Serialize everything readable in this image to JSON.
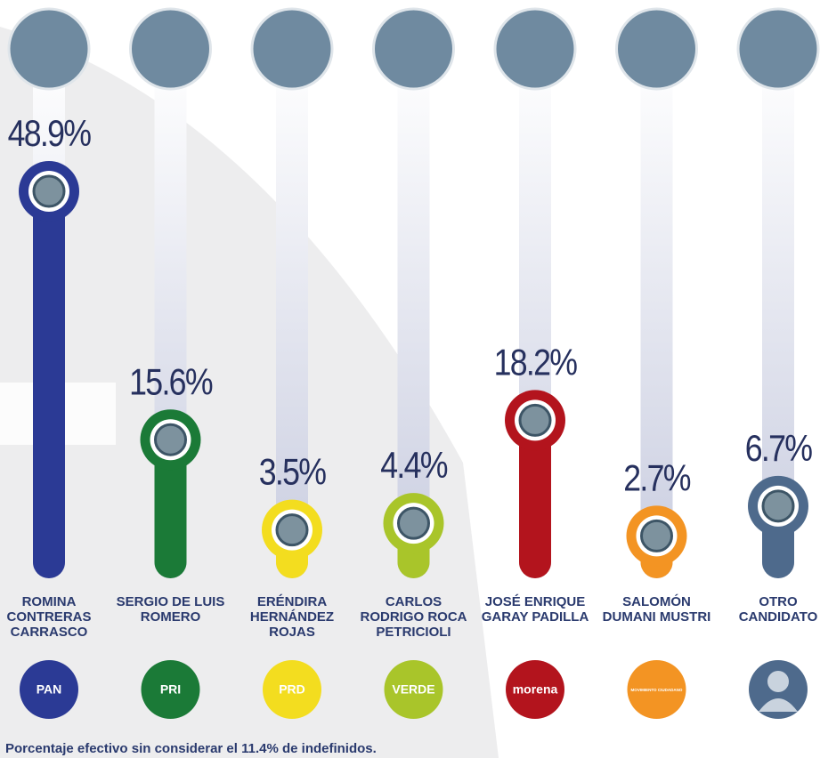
{
  "chart_data": {
    "type": "bar",
    "categories": [
      "ROMINA CONTRERAS CARRASCO",
      "SERGIO DE LUIS ROMERO",
      "ERÉNDIRA HERNÁNDEZ ROJAS",
      "CARLOS RODRIGO ROCA PETRICIOLI",
      "JOSÉ ENRIQUE GARAY PADILLA",
      "SALOMÓN DUMANI MUSTRI",
      "OTRO CANDIDATO"
    ],
    "values": [
      48.9,
      15.6,
      3.5,
      4.4,
      18.2,
      2.7,
      6.7
    ],
    "value_labels": [
      "48.9%",
      "15.6%",
      "3.5%",
      "4.4%",
      "18.2%",
      "2.7%",
      "6.7%"
    ],
    "colors": [
      "#2b3a95",
      "#1b7a37",
      "#f3dd1f",
      "#a9c52a",
      "#b3141d",
      "#f39423",
      "#4e6a8c"
    ],
    "parties": [
      "PAN",
      "PRI",
      "PRD",
      "VERDE",
      "morena",
      "MOVIMIENTO CIUDADANO"
    ],
    "footnote": "Porcentaje efectivo sin considerar el 11.4% de indefinidos."
  }
}
